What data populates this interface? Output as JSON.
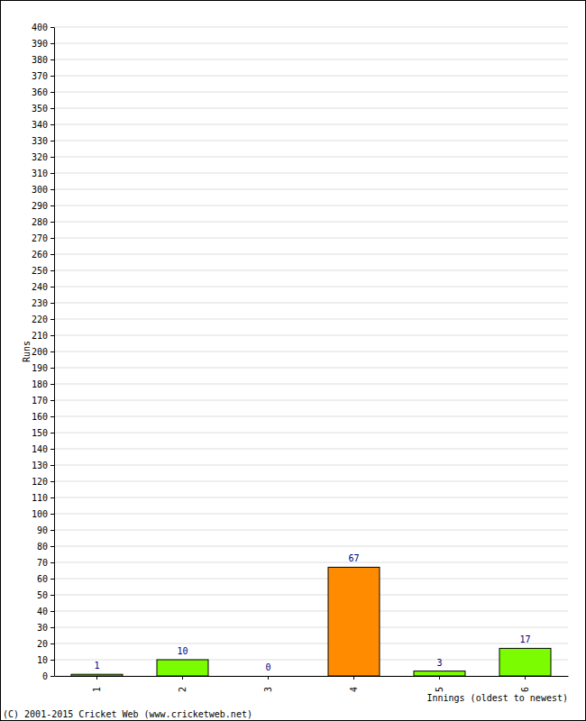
{
  "chart_data": {
    "type": "bar",
    "x_label": "Innings (oldest to newest)",
    "y_label": "Runs",
    "annotations": [
      "(C) 2001-2015 Cricket Web (www.cricketweb.net)"
    ],
    "categories": [
      "1",
      "2",
      "3",
      "4",
      "5",
      "6"
    ],
    "values": [
      1,
      10,
      0,
      67,
      3,
      17
    ],
    "colors": [
      "#7cfc00",
      "#7cfc00",
      "#7cfc00",
      "#ff8c00",
      "#7cfc00",
      "#7cfc00"
    ],
    "ylim": [
      0,
      400
    ],
    "yticks": [
      0,
      10,
      20,
      30,
      40,
      50,
      60,
      70,
      80,
      90,
      100,
      110,
      120,
      130,
      140,
      150,
      160,
      170,
      180,
      190,
      200,
      210,
      220,
      230,
      240,
      250,
      260,
      270,
      280,
      290,
      300,
      310,
      320,
      330,
      340,
      350,
      360,
      370,
      380,
      390,
      400
    ],
    "grid": true,
    "data_labels": true
  }
}
